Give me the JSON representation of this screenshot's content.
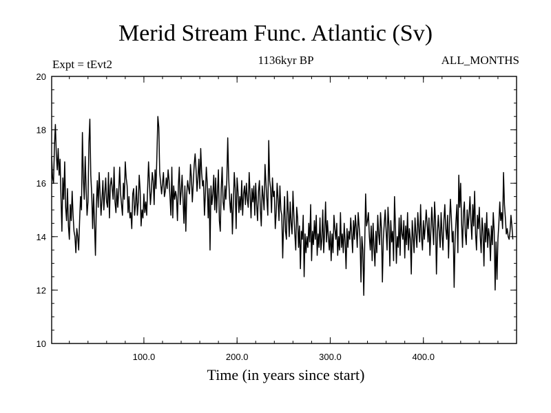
{
  "chart_data": {
    "type": "line",
    "title": "Merid Stream Func. Atlantic (Sv)",
    "subtitle": "1136kyr BP",
    "expt_label": "Expt = tEvt2",
    "period_label": "ALL_MONTHS",
    "xlabel": "Time (in years since start)",
    "ylabel": "",
    "xlim": [
      1,
      500
    ],
    "ylim": [
      10,
      20
    ],
    "x_ticks": [
      100,
      200,
      300,
      400
    ],
    "x_tick_labels": [
      "100.0",
      "200.0",
      "300.0",
      "400.0"
    ],
    "y_ticks": [
      10,
      12,
      14,
      16,
      18,
      20
    ],
    "y_tick_labels": [
      "10",
      "12",
      "14",
      "16",
      "18",
      "20"
    ],
    "grid": false,
    "series": [
      {
        "name": "Merid Stream Func. Atlantic",
        "x_start": 1,
        "x_step": 1,
        "values": [
          17.0,
          16.2,
          16.0,
          17.4,
          18.2,
          17.1,
          16.5,
          17.3,
          16.3,
          16.9,
          15.5,
          14.2,
          16.2,
          15.4,
          16.8,
          15.1,
          14.6,
          15.8,
          14.4,
          13.9,
          15.2,
          14.6,
          15.7,
          14.8,
          14.2,
          14.0,
          13.4,
          14.3,
          14.0,
          13.5,
          14.6,
          15.5,
          15.0,
          17.9,
          16.2,
          15.4,
          17.0,
          15.8,
          14.8,
          15.3,
          17.5,
          18.4,
          16.3,
          15.6,
          14.3,
          15.6,
          14.5,
          13.3,
          15.2,
          16.1,
          15.1,
          16.4,
          15.6,
          14.8,
          15.4,
          16.1,
          15.0,
          15.6,
          16.2,
          15.3,
          15.1,
          16.4,
          14.7,
          15.9,
          16.2,
          15.8,
          15.4,
          16.6,
          15.3,
          14.9,
          15.8,
          15.1,
          15.7,
          16.6,
          15.6,
          15.2,
          14.8,
          16.0,
          15.4,
          16.8,
          16.2,
          15.9,
          14.9,
          15.5,
          14.7,
          14.9,
          14.3,
          15.6,
          15.8,
          14.8,
          15.2,
          15.9,
          14.8,
          15.3,
          16.3,
          15.7,
          14.4,
          15.0,
          14.7,
          15.6,
          14.9,
          15.3,
          14.8,
          15.8,
          16.8,
          16.0,
          15.2,
          15.7,
          16.4,
          16.1,
          15.2,
          16.5,
          15.8,
          17.1,
          18.5,
          18.1,
          16.4,
          16.0,
          15.6,
          16.0,
          16.4,
          15.5,
          15.7,
          16.2,
          15.8,
          16.5,
          16.1,
          15.5,
          14.8,
          16.6,
          14.7,
          15.9,
          15.4,
          15.7,
          15.5,
          14.6,
          15.9,
          16.6,
          15.2,
          15.7,
          16.3,
          15.4,
          14.5,
          15.9,
          14.2,
          15.6,
          16.1,
          15.8,
          15.6,
          16.7,
          16.2,
          15.3,
          16.0,
          16.7,
          17.1,
          16.5,
          15.7,
          16.2,
          16.9,
          15.8,
          17.3,
          16.4,
          15.9,
          16.1,
          14.8,
          15.6,
          16.6,
          16.0,
          14.7,
          15.8,
          13.5,
          15.9,
          15.2,
          15.6,
          16.3,
          15.0,
          16.2,
          14.9,
          15.7,
          16.5,
          14.6,
          14.2,
          15.8,
          16.6,
          15.3,
          15.0,
          15.9,
          15.4,
          16.1,
          17.7,
          16.2,
          15.4,
          14.9,
          15.6,
          14.1,
          15.2,
          16.4,
          15.8,
          14.3,
          16.2,
          15.7,
          14.9,
          15.5,
          15.0,
          16.1,
          14.8,
          15.6,
          15.9,
          15.2,
          16.0,
          15.4,
          15.1,
          16.4,
          15.6,
          14.7,
          15.8,
          15.3,
          15.9,
          14.8,
          16.0,
          15.2,
          14.6,
          15.7,
          16.1,
          15.0,
          14.4,
          15.9,
          15.5,
          15.0,
          16.7,
          16.0,
          15.4,
          14.8,
          17.6,
          16.1,
          15.8,
          14.9,
          16.2,
          15.5,
          15.7,
          14.3,
          14.9,
          16.0,
          15.4,
          14.6,
          15.9,
          15.0,
          14.8,
          13.2,
          14.6,
          15.5,
          14.2,
          13.9,
          15.7,
          14.9,
          14.0,
          15.3,
          14.5,
          14.1,
          15.7,
          14.8,
          14.1,
          13.5,
          15.1,
          14.7,
          13.6,
          14.4,
          12.8,
          14.2,
          13.9,
          14.8,
          12.5,
          14.1,
          13.4,
          14.0,
          13.6,
          14.5,
          13.8,
          15.2,
          13.1,
          14.2,
          13.7,
          14.6,
          13.9,
          14.8,
          13.3,
          14.1,
          13.6,
          14.7,
          13.5,
          13.9,
          15.0,
          13.4,
          14.2,
          15.3,
          13.8,
          14.6,
          14.0,
          13.5,
          14.2,
          13.1,
          14.1,
          13.4,
          14.8,
          14.3,
          13.9,
          14.5,
          13.3,
          14.0,
          13.5,
          14.9,
          13.6,
          14.1,
          13.4,
          14.5,
          13.8,
          12.8,
          14.3,
          13.6,
          14.2,
          13.9,
          14.7,
          14.1,
          13.4,
          14.6,
          13.9,
          14.8,
          14.3,
          13.6,
          14.9,
          14.4,
          13.9,
          12.3,
          14.0,
          13.5,
          11.8,
          13.7,
          15.6,
          14.4,
          14.6,
          14.9,
          14.0,
          13.5,
          14.4,
          13.1,
          14.5,
          13.6,
          12.9,
          14.2,
          13.4,
          14.8,
          14.1,
          13.7,
          14.9,
          14.3,
          12.3,
          13.9,
          14.5,
          15.0,
          14.2,
          13.5,
          15.1,
          14.4,
          12.9,
          14.6,
          13.8,
          14.2,
          13.1,
          15.5,
          14.4,
          13.0,
          14.0,
          13.6,
          14.7,
          13.3,
          14.8,
          14.1,
          13.9,
          14.6,
          13.2,
          14.4,
          13.7,
          14.9,
          13.5,
          14.3,
          13.9,
          12.6,
          14.6,
          14.0,
          13.4,
          14.7,
          14.1,
          13.6,
          14.9,
          14.3,
          13.8,
          15.2,
          14.0,
          13.5,
          14.6,
          13.9,
          14.4,
          15.0,
          14.5,
          13.8,
          14.7,
          13.3,
          14.2,
          15.1,
          14.4,
          13.7,
          15.3,
          14.6,
          12.6,
          14.1,
          14.8,
          14.2,
          13.6,
          14.9,
          14.1,
          13.5,
          14.6,
          15.2,
          14.3,
          13.9,
          14.8,
          13.2,
          14.5,
          15.4,
          14.7,
          13.8,
          14.2,
          12.1,
          13.9,
          14.6,
          15.2,
          13.4,
          16.3,
          15.1,
          16.0,
          14.5,
          13.6,
          14.9,
          15.3,
          14.1,
          13.7,
          15.0,
          14.3,
          14.8,
          15.5,
          14.6,
          13.9,
          15.2,
          14.4,
          15.7,
          14.1,
          13.5,
          14.8,
          14.3,
          15.1,
          14.0,
          13.4,
          14.7,
          14.2,
          12.9,
          14.5,
          13.8,
          14.9,
          13.6,
          14.3,
          14.0,
          13.1,
          14.4,
          13.7,
          14.9,
          14.2,
          12.0,
          13.8,
          12.4,
          13.9,
          14.5,
          15.3,
          14.6,
          14.9,
          14.3,
          16.4,
          15.2,
          14.7,
          14.1,
          14.3,
          14.0,
          13.9,
          14.2,
          14.8,
          14.4,
          13.9
        ]
      }
    ]
  }
}
